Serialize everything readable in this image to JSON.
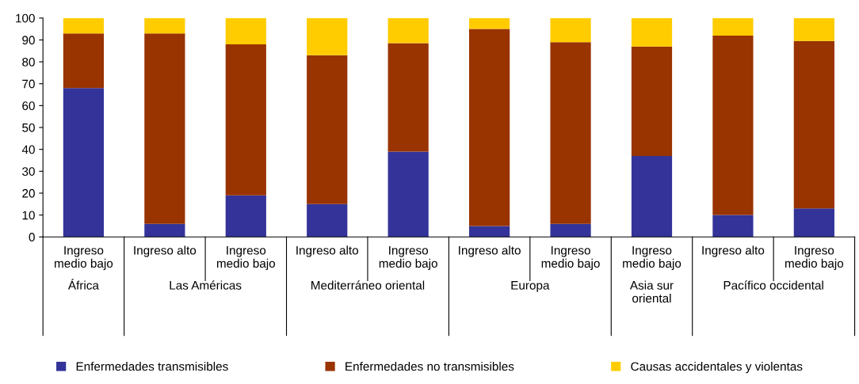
{
  "chart_data": {
    "type": "bar",
    "stacked": true,
    "categories": [
      "Ingreso\nmedio bajo",
      "Ingreso alto",
      "Ingreso\nmedio bajo",
      "Ingreso alto",
      "Ingreso\nmedio bajo",
      "Ingreso alto",
      "Ingreso\nmedio bajo",
      "Ingreso\nmedio bajo",
      "Ingreso alto",
      "Ingreso\nmedio bajo"
    ],
    "series": [
      {
        "name": "Enfermedades transmisibles",
        "color": "#333399",
        "values": [
          68,
          6,
          19,
          15,
          39,
          5,
          6,
          37,
          10,
          13
        ]
      },
      {
        "name": "Enfermedades no transmisibles",
        "color": "#993300",
        "values": [
          25,
          87,
          69,
          68,
          49.5,
          90,
          83,
          50,
          82,
          76.5
        ]
      },
      {
        "name": "Causas accidentales y violentas",
        "color": "#ffcc00",
        "values": [
          7,
          7,
          12,
          17,
          11.5,
          5,
          11,
          13,
          8,
          10.5
        ]
      }
    ],
    "annotations": [
      "África",
      "Las Américas",
      "Mediterráneo oriental",
      "Europa",
      "Asia sur\noriental",
      "Pacífico occidental"
    ],
    "ylim": [
      0,
      100
    ],
    "yticks": [
      0,
      10,
      20,
      30,
      40,
      50,
      60,
      70,
      80,
      90,
      100
    ],
    "grid": false,
    "legend": "bottom"
  }
}
